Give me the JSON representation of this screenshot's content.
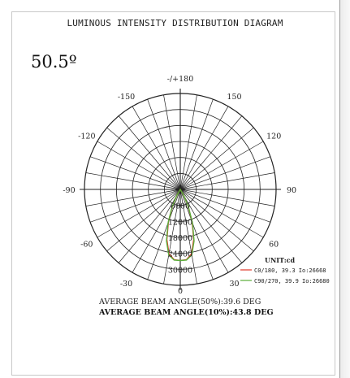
{
  "title": "LUMINOUS INTENSITY DISTRIBUTION DIAGRAM",
  "beam_angle_label": "50.5º",
  "colors": {
    "grid": "#222222",
    "c0_180": "#e03a2a",
    "c90_270": "#5aae3a"
  },
  "chart_data": {
    "type": "polar",
    "angle_tick_labels": [
      "-/+180",
      "150",
      "120",
      "90",
      "60",
      "30",
      "0",
      "-30",
      "-60",
      "-90",
      "-120",
      "-150"
    ],
    "radial_tick_labels": [
      "6000",
      "12000",
      "18000",
      "24000",
      "30000"
    ],
    "radial_range": [
      0,
      36000
    ],
    "unit_label": "UNIT:cd",
    "series": [
      {
        "name": "C0/180, 39.3 Io:26668",
        "color": "#e03a2a",
        "points": [
          [
            -35,
            0
          ],
          [
            -30,
            2500
          ],
          [
            -25,
            7000
          ],
          [
            -20,
            13000
          ],
          [
            -15,
            19500
          ],
          [
            -10,
            24500
          ],
          [
            -5,
            26500
          ],
          [
            0,
            26668
          ],
          [
            5,
            26500
          ],
          [
            10,
            24500
          ],
          [
            15,
            19500
          ],
          [
            20,
            13000
          ],
          [
            25,
            7000
          ],
          [
            30,
            2500
          ],
          [
            35,
            0
          ]
        ]
      },
      {
        "name": "C90/270, 39.9 Io:26680",
        "color": "#5aae3a",
        "points": [
          [
            -35,
            0
          ],
          [
            -30,
            2700
          ],
          [
            -25,
            7300
          ],
          [
            -20,
            13500
          ],
          [
            -15,
            20000
          ],
          [
            -10,
            25000
          ],
          [
            -5,
            26600
          ],
          [
            0,
            26680
          ],
          [
            5,
            26600
          ],
          [
            10,
            25000
          ],
          [
            15,
            20000
          ],
          [
            20,
            13500
          ],
          [
            25,
            7300
          ],
          [
            30,
            2700
          ],
          [
            35,
            0
          ]
        ]
      }
    ]
  },
  "average_beam_angle_50": "AVERAGE BEAM ANGLE(50%):39.6 DEG",
  "average_beam_angle_10": "AVERAGE BEAM ANGLE(10%):43.8 DEG"
}
